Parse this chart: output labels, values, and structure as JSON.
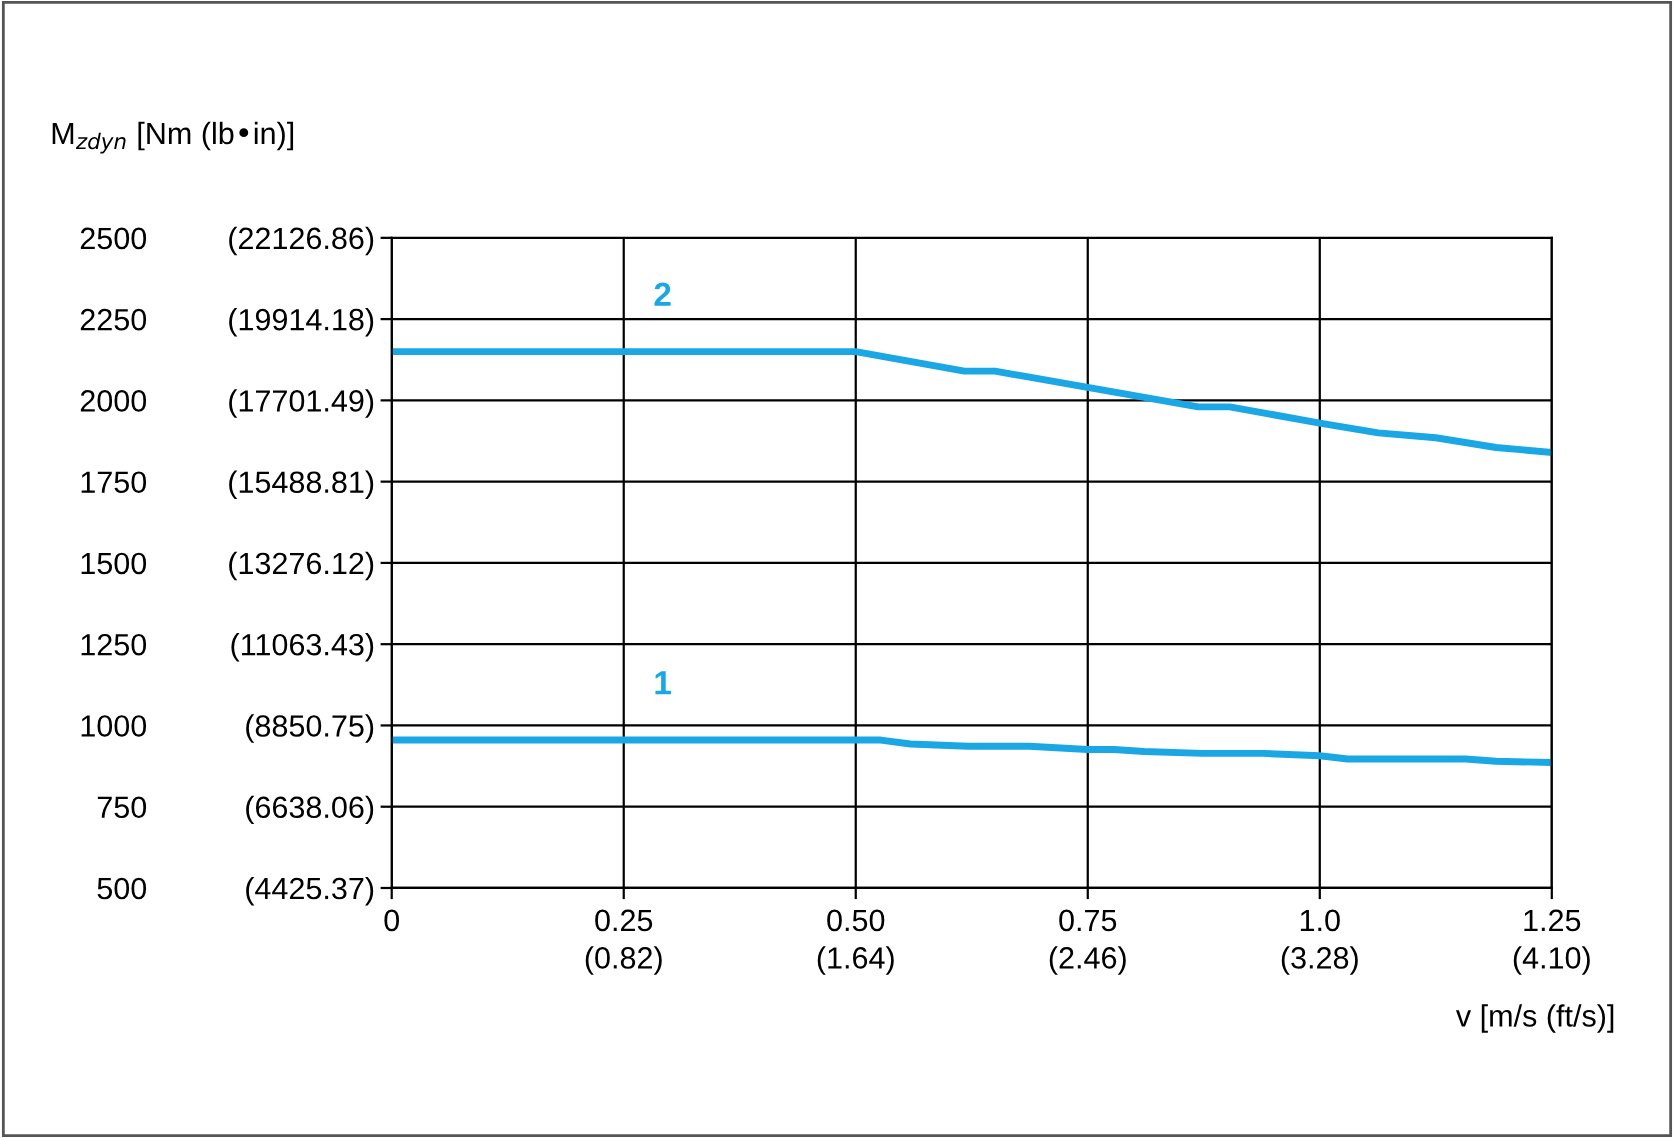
{
  "chart_data": {
    "type": "line",
    "ylabel": "M$_{zdyn}$ [Nm (lb•in)]",
    "xlabel": "v [m/s (ft/s)]",
    "series": [
      {
        "name": "2",
        "color": "#1aa7e3",
        "x": [
          0,
          0.5,
          0.617,
          0.65,
          0.869,
          0.903,
          1.0,
          1.063,
          1.125,
          1.19,
          1.25
        ],
        "values": [
          2150,
          2150,
          2090,
          2090,
          1980,
          1980,
          1930,
          1900,
          1885,
          1855,
          1840
        ]
      },
      {
        "name": "1",
        "color": "#1aa7e3",
        "x": [
          0,
          0.527,
          0.559,
          0.621,
          0.687,
          0.75,
          0.778,
          0.811,
          0.873,
          0.939,
          1.0,
          1.03,
          1.157,
          1.19,
          1.25
        ],
        "values": [
          955,
          955,
          943,
          936,
          936,
          926,
          926,
          920,
          914,
          914,
          907,
          897,
          897,
          890,
          886
        ]
      }
    ],
    "xlim": [
      0,
      1.25
    ],
    "xticks": [
      0,
      0.25,
      {
        "value": 0.5,
        "label": "0.50"
      },
      0.75,
      {
        "value": 1.0,
        "label": "1.0"
      },
      1.25
    ],
    "x2lim": [
      0,
      4.1
    ],
    "x2ticks": [
      {
        "value": 0.82,
        "label": "(0.82)"
      },
      {
        "value": 1.64,
        "label": "(1.64)"
      },
      {
        "value": 2.46,
        "label": "(2.46)"
      },
      {
        "value": 3.28,
        "label": "(3.28)"
      },
      {
        "value": 4.1,
        "label": "(4.10)"
      }
    ],
    "ylim": [
      500,
      2500
    ],
    "yticks": [
      500,
      750,
      1000,
      1250,
      1500,
      1750,
      2000,
      2250,
      2500
    ],
    "y2lim": [
      4425.37,
      22126.86
    ],
    "y2ticks": [
      {
        "value": 4425.37,
        "label": "(4425.37)"
      },
      {
        "value": 6638.06,
        "label": "(6638.06)"
      },
      {
        "value": 8850.75,
        "label": "(8850.75)"
      },
      {
        "value": 11063.43,
        "label": "(11063.43)"
      },
      {
        "value": 13276.12,
        "label": "(13276.12)"
      },
      {
        "value": 15488.81,
        "label": "(15488.81)"
      },
      {
        "value": 17701.49,
        "label": "(17701.49)"
      },
      {
        "value": 19914.18,
        "label": "(19914.18)"
      },
      {
        "value": 22126.86,
        "label": "(22126.86)"
      }
    ],
    "grid": true,
    "line_style": "solid"
  }
}
